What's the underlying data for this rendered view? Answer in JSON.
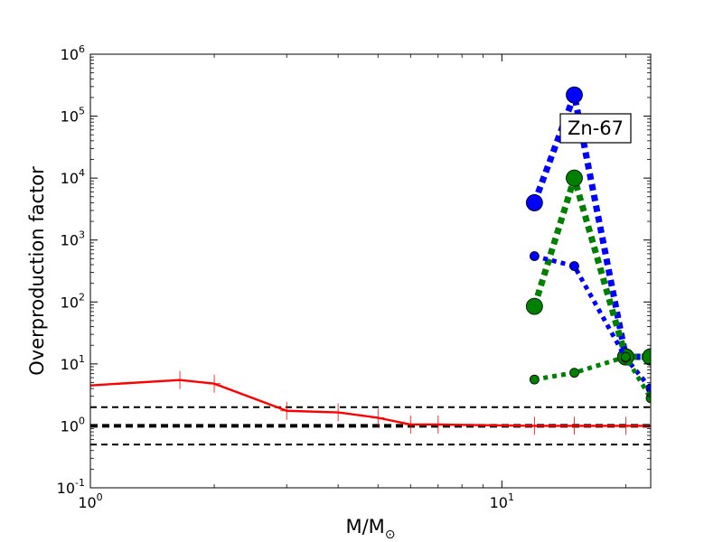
{
  "chart_data": {
    "type": "line",
    "xscale": "log",
    "yscale": "log",
    "xlim": [
      1,
      23
    ],
    "ylim": [
      0.1,
      1000000
    ],
    "xlabel": "M/M",
    "xlabel_subscript": "⊙",
    "ylabel": "Overproduction factor",
    "grid": false,
    "annotation": "Zn-67",
    "x_ticks": [
      {
        "base": "10",
        "exp": "0",
        "value": 1
      },
      {
        "base": "10",
        "exp": "1",
        "value": 10
      }
    ],
    "y_ticks": [
      {
        "base": "10",
        "exp": "-1",
        "value": 0.1
      },
      {
        "base": "10",
        "exp": "0",
        "value": 1
      },
      {
        "base": "10",
        "exp": "1",
        "value": 10
      },
      {
        "base": "10",
        "exp": "2",
        "value": 100
      },
      {
        "base": "10",
        "exp": "3",
        "value": 1000
      },
      {
        "base": "10",
        "exp": "4",
        "value": 10000
      },
      {
        "base": "10",
        "exp": "5",
        "value": 100000
      },
      {
        "base": "10",
        "exp": "6",
        "value": 1000000
      }
    ],
    "reference_lines": [
      {
        "y": 2,
        "style": "dashed",
        "color": "#000000"
      },
      {
        "y": 1,
        "style": "dashed-thick",
        "color": "#000000"
      },
      {
        "y": 0.5,
        "style": "dashed",
        "color": "#000000"
      }
    ],
    "series": [
      {
        "color": "#ff0000",
        "style": "solid",
        "marker": "plus",
        "x": [
          1,
          1.65,
          2,
          3,
          4,
          5,
          6,
          7,
          12,
          15,
          20,
          23
        ],
        "y": [
          4.5,
          5.5,
          4.8,
          1.75,
          1.65,
          1.35,
          1.05,
          1.05,
          1.0,
          1.0,
          1.0,
          1.0
        ]
      },
      {
        "color": "#0000ff",
        "style": "dotted-heavy",
        "marker": "circle-large",
        "x": [
          12,
          15,
          20,
          23
        ],
        "y": [
          4000,
          220000,
          13,
          13
        ]
      },
      {
        "color": "#008000",
        "style": "dotted-heavy",
        "marker": "circle-large",
        "x": [
          12,
          15,
          20,
          23
        ],
        "y": [
          85,
          10000,
          13,
          13
        ]
      },
      {
        "color": "#0000ff",
        "style": "dotted",
        "marker": "circle-small",
        "x": [
          12,
          15,
          20,
          23
        ],
        "y": [
          550,
          380,
          12.5,
          4
        ]
      },
      {
        "color": "#008000",
        "style": "dotted",
        "marker": "circle-small",
        "x": [
          12,
          15,
          20,
          23
        ],
        "y": [
          5.6,
          7.2,
          13,
          2.8
        ]
      }
    ]
  }
}
